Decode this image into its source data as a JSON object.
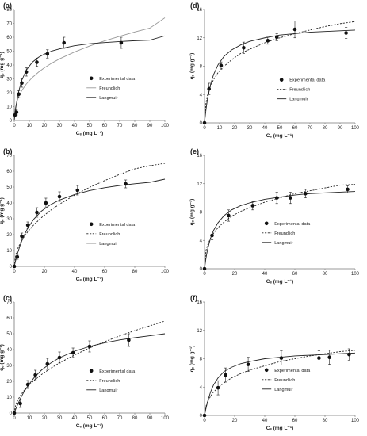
{
  "chart_data": [
    {
      "type": "scatter",
      "panel_label": "(a)",
      "xlabel": "Cₑ (mg L⁻¹)",
      "ylabel": "qₑ (mg g⁻¹)",
      "xlim": [
        0,
        100
      ],
      "ylim": [
        0,
        80
      ],
      "xticks": [
        0,
        10,
        20,
        30,
        40,
        50,
        60,
        70,
        80,
        90,
        100
      ],
      "yticks": [
        0,
        10,
        20,
        30,
        40,
        50,
        60,
        70,
        80
      ],
      "freundlich_line_style": "solid-gray",
      "legend": [
        "Experimental data",
        "Freundlich",
        "Langmuir"
      ],
      "legend_position": "center-right",
      "series": [
        {
          "name": "Experimental data",
          "style": "points",
          "x": [
            0.5,
            1.5,
            3,
            5,
            8,
            15,
            22,
            33,
            71
          ],
          "y": [
            4,
            6,
            19,
            27,
            35,
            42,
            48,
            56,
            56
          ],
          "err": [
            1.5,
            2,
            2.5,
            3,
            3,
            3,
            3,
            4,
            4
          ]
        },
        {
          "name": "Freundlich",
          "style": "curve",
          "x": [
            0,
            0.5,
            1,
            2,
            3,
            5,
            8,
            12,
            16,
            20,
            25,
            30,
            40,
            50,
            60,
            70,
            80,
            90,
            100
          ],
          "y": [
            0,
            7.6,
            10.4,
            14.3,
            17.2,
            21.6,
            26.3,
            31.0,
            34.8,
            38.0,
            41.4,
            44.4,
            49.4,
            53.7,
            57.4,
            60.7,
            63.8,
            66.6,
            74
          ]
        },
        {
          "name": "Langmuir",
          "style": "curve",
          "x": [
            0,
            0.5,
            1,
            2,
            3,
            5,
            8,
            12,
            16,
            20,
            25,
            30,
            40,
            50,
            60,
            70,
            80,
            90,
            100
          ],
          "y": [
            0,
            4.9,
            9.1,
            15.9,
            21.2,
            29.0,
            36.3,
            42.0,
            45.5,
            47.9,
            50.1,
            51.6,
            53.9,
            55.3,
            56.2,
            56.9,
            57.5,
            57.9,
            61
          ]
        }
      ]
    },
    {
      "type": "scatter",
      "panel_label": "(b)",
      "xlabel": "Cₑ (mg L⁻¹)",
      "ylabel": "qₑ (mg g⁻¹)",
      "xlim": [
        0,
        100
      ],
      "ylim": [
        0,
        70
      ],
      "xticks": [
        0,
        20,
        40,
        60,
        80,
        100
      ],
      "yticks": [
        0,
        10,
        20,
        30,
        40,
        50,
        60,
        70
      ],
      "freundlich_line_style": "dashed",
      "legend": [
        "Experimental data",
        "Freundlich",
        "Langmuir"
      ],
      "legend_position": "center-right",
      "series": [
        {
          "name": "Experimental data",
          "style": "points",
          "x": [
            0,
            2,
            5,
            9,
            15,
            21,
            30,
            42,
            74
          ],
          "y": [
            0,
            6,
            19,
            26,
            34,
            40,
            44,
            48,
            52
          ],
          "err": [
            0,
            1.5,
            2,
            2,
            3,
            3,
            3,
            3,
            2.5
          ]
        },
        {
          "name": "Freundlich",
          "style": "curve",
          "x": [
            0,
            1,
            2,
            4,
            6,
            9,
            13,
            18,
            24,
            30,
            40,
            50,
            60,
            70,
            80,
            90,
            100
          ],
          "y": [
            0,
            7.5,
            10.5,
            14.7,
            17.9,
            21.9,
            26.2,
            30.7,
            35.3,
            39.2,
            44.9,
            49.8,
            54.1,
            58.0,
            61.5,
            63.5,
            65
          ]
        },
        {
          "name": "Langmuir",
          "style": "curve",
          "x": [
            0,
            1,
            2,
            4,
            6,
            9,
            13,
            18,
            24,
            30,
            40,
            50,
            60,
            70,
            80,
            90,
            100
          ],
          "y": [
            0,
            4.0,
            7.6,
            13.6,
            18.5,
            24.2,
            29.8,
            34.8,
            38.9,
            41.8,
            45.3,
            47.8,
            49.6,
            51.0,
            52.1,
            53.0,
            55
          ]
        }
      ]
    },
    {
      "type": "scatter",
      "panel_label": "(c)",
      "xlabel": "Cₑ (mg L⁻¹)",
      "ylabel": "qₑ (mg g⁻¹)",
      "xlim": [
        0,
        100
      ],
      "ylim": [
        0,
        70
      ],
      "xticks": [
        0,
        10,
        20,
        30,
        40,
        50,
        60,
        70,
        80,
        90,
        100
      ],
      "yticks": [
        0,
        10,
        20,
        30,
        40,
        50,
        60,
        70
      ],
      "freundlich_line_style": "dashed",
      "legend": [
        "Experimental data",
        "Freundlich",
        "Langmuir"
      ],
      "legend_position": "center-right",
      "series": [
        {
          "name": "Experimental data",
          "style": "points",
          "x": [
            0,
            4,
            9,
            14,
            22,
            30,
            39,
            50,
            76
          ],
          "y": [
            0,
            6,
            18,
            24,
            31,
            35,
            38,
            42,
            46
          ],
          "err": [
            0,
            2.5,
            2.5,
            3,
            3.5,
            3.5,
            3,
            3.5,
            4
          ]
        },
        {
          "name": "Freundlich",
          "style": "curve",
          "x": [
            0,
            1,
            2,
            4,
            6,
            9,
            13,
            18,
            24,
            30,
            40,
            50,
            60,
            70,
            80,
            90,
            100
          ],
          "y": [
            0,
            5.2,
            7.5,
            10.9,
            13.6,
            16.9,
            20.4,
            24.2,
            28.1,
            31.6,
            36.6,
            41.0,
            45.0,
            48.6,
            52.0,
            55.0,
            58
          ]
        },
        {
          "name": "Langmuir",
          "style": "curve",
          "x": [
            0,
            1,
            2,
            4,
            6,
            9,
            13,
            18,
            24,
            30,
            40,
            50,
            60,
            70,
            80,
            90,
            100
          ],
          "y": [
            0,
            2.5,
            4.8,
            9.0,
            12.6,
            17.1,
            22.1,
            27.0,
            31.4,
            34.8,
            39.0,
            42.0,
            44.3,
            46.1,
            47.5,
            48.7,
            50
          ]
        }
      ]
    },
    {
      "type": "scatter",
      "panel_label": "(d)",
      "xlabel": "Cₑ (mg L⁻¹)",
      "ylabel": "qₑ (mg g⁻¹)",
      "xlim": [
        0,
        100
      ],
      "ylim": [
        0,
        16
      ],
      "xticks": [
        0,
        10,
        20,
        30,
        40,
        50,
        60,
        70,
        80,
        90,
        100
      ],
      "yticks": [
        0,
        4,
        8,
        12,
        16
      ],
      "freundlich_line_style": "dashed",
      "legend": [
        "Experimental data",
        "Freundlich",
        "Langmuir"
      ],
      "legend_position": "center-right",
      "series": [
        {
          "name": "Experimental data",
          "style": "points",
          "x": [
            0,
            3,
            11,
            26,
            42,
            48,
            60,
            94
          ],
          "y": [
            0,
            4.8,
            8.1,
            10.6,
            11.6,
            12.1,
            13.2,
            12.7
          ],
          "err": [
            0,
            0.8,
            0.5,
            0.8,
            0.5,
            0.5,
            1.2,
            0.8
          ]
        },
        {
          "name": "Freundlich",
          "style": "curve",
          "x": [
            0,
            1,
            2,
            4,
            6,
            9,
            13,
            18,
            24,
            30,
            40,
            50,
            60,
            70,
            80,
            90,
            100
          ],
          "y": [
            0,
            2.9,
            3.9,
            5.2,
            6.1,
            7.1,
            8.0,
            8.9,
            9.8,
            10.4,
            11.3,
            12.0,
            12.6,
            13.1,
            13.6,
            14.0,
            14.3
          ]
        },
        {
          "name": "Langmuir",
          "style": "curve",
          "x": [
            0,
            1,
            2,
            4,
            6,
            9,
            13,
            18,
            24,
            30,
            40,
            50,
            60,
            70,
            80,
            90,
            100
          ],
          "y": [
            0,
            1.9,
            3.4,
            5.4,
            6.8,
            8.2,
            9.4,
            10.3,
            11.0,
            11.5,
            12.0,
            12.4,
            12.6,
            12.8,
            12.9,
            13.0,
            13.1
          ]
        }
      ]
    },
    {
      "type": "scatter",
      "panel_label": "(e)",
      "xlabel": "Cₑ (mg L⁻¹)",
      "ylabel": "qₑ (mg g⁻¹)",
      "xlim": [
        0,
        100
      ],
      "ylim": [
        0,
        16
      ],
      "xticks": [
        0,
        20,
        40,
        60,
        80,
        100
      ],
      "yticks": [
        0,
        4,
        8,
        12,
        16
      ],
      "freundlich_line_style": "dashed",
      "legend": [
        "Experimental data",
        "Freundlich",
        "Langmuir"
      ],
      "legend_position": "center",
      "series": [
        {
          "name": "Experimental data",
          "style": "points",
          "x": [
            0,
            5,
            16,
            32,
            48,
            57,
            67,
            95
          ],
          "y": [
            0,
            4.7,
            7.5,
            8.9,
            10.0,
            10.0,
            10.6,
            11.2
          ],
          "err": [
            0,
            0.6,
            0.8,
            0.6,
            0.8,
            0.8,
            0.6,
            0.5
          ]
        },
        {
          "name": "Freundlich",
          "style": "curve",
          "x": [
            0,
            1,
            2,
            4,
            6,
            9,
            13,
            18,
            24,
            30,
            40,
            50,
            60,
            70,
            80,
            90,
            100
          ],
          "y": [
            0,
            2.6,
            3.3,
            4.3,
            5.0,
            5.8,
            6.6,
            7.4,
            8.1,
            8.6,
            9.4,
            10.0,
            10.6,
            11.0,
            11.4,
            11.8,
            11.9
          ]
        },
        {
          "name": "Langmuir",
          "style": "curve",
          "x": [
            0,
            1,
            2,
            4,
            6,
            9,
            13,
            18,
            24,
            30,
            40,
            50,
            60,
            70,
            80,
            90,
            100
          ],
          "y": [
            0,
            1.5,
            2.7,
            4.3,
            5.4,
            6.5,
            7.5,
            8.3,
            8.9,
            9.3,
            9.8,
            10.1,
            10.4,
            10.6,
            10.7,
            10.8,
            10.9
          ]
        }
      ]
    },
    {
      "type": "scatter",
      "panel_label": "(f)",
      "xlabel": "Cₑ (mg L⁻¹)",
      "ylabel": "qₑ (mg g⁻¹)",
      "xlim": [
        0,
        100
      ],
      "ylim": [
        0,
        16
      ],
      "xticks": [
        0,
        20,
        40,
        60,
        80,
        100
      ],
      "yticks": [
        0,
        4,
        8,
        12,
        16
      ],
      "freundlich_line_style": "dashed",
      "legend": [
        "Experimental data",
        "Freundlich",
        "Langmuir"
      ],
      "legend_position": "center",
      "series": [
        {
          "name": "Experimental data",
          "style": "points",
          "x": [
            0,
            9,
            14,
            29,
            51,
            76,
            83,
            96
          ],
          "y": [
            0,
            3.9,
            5.7,
            7.2,
            8.1,
            8.1,
            8.2,
            8.6
          ],
          "err": [
            0,
            1.0,
            1.0,
            1.0,
            1.0,
            1.0,
            1.0,
            0.8
          ]
        },
        {
          "name": "Freundlich",
          "style": "curve",
          "x": [
            0,
            1,
            2,
            4,
            6,
            9,
            13,
            18,
            24,
            30,
            40,
            50,
            60,
            70,
            80,
            90,
            100
          ],
          "y": [
            0,
            1.3,
            1.9,
            2.7,
            3.3,
            3.9,
            4.6,
            5.3,
            5.9,
            6.4,
            7.0,
            7.6,
            8.0,
            8.4,
            8.7,
            9.0,
            9.2
          ]
        },
        {
          "name": "Langmuir",
          "style": "curve",
          "x": [
            0,
            1,
            2,
            4,
            6,
            9,
            13,
            18,
            24,
            30,
            40,
            50,
            60,
            70,
            80,
            90,
            100
          ],
          "y": [
            0,
            1.0,
            1.9,
            3.3,
            4.3,
            5.3,
            6.2,
            6.8,
            7.3,
            7.6,
            8.0,
            8.2,
            8.4,
            8.5,
            8.6,
            8.7,
            8.8
          ]
        }
      ]
    }
  ]
}
